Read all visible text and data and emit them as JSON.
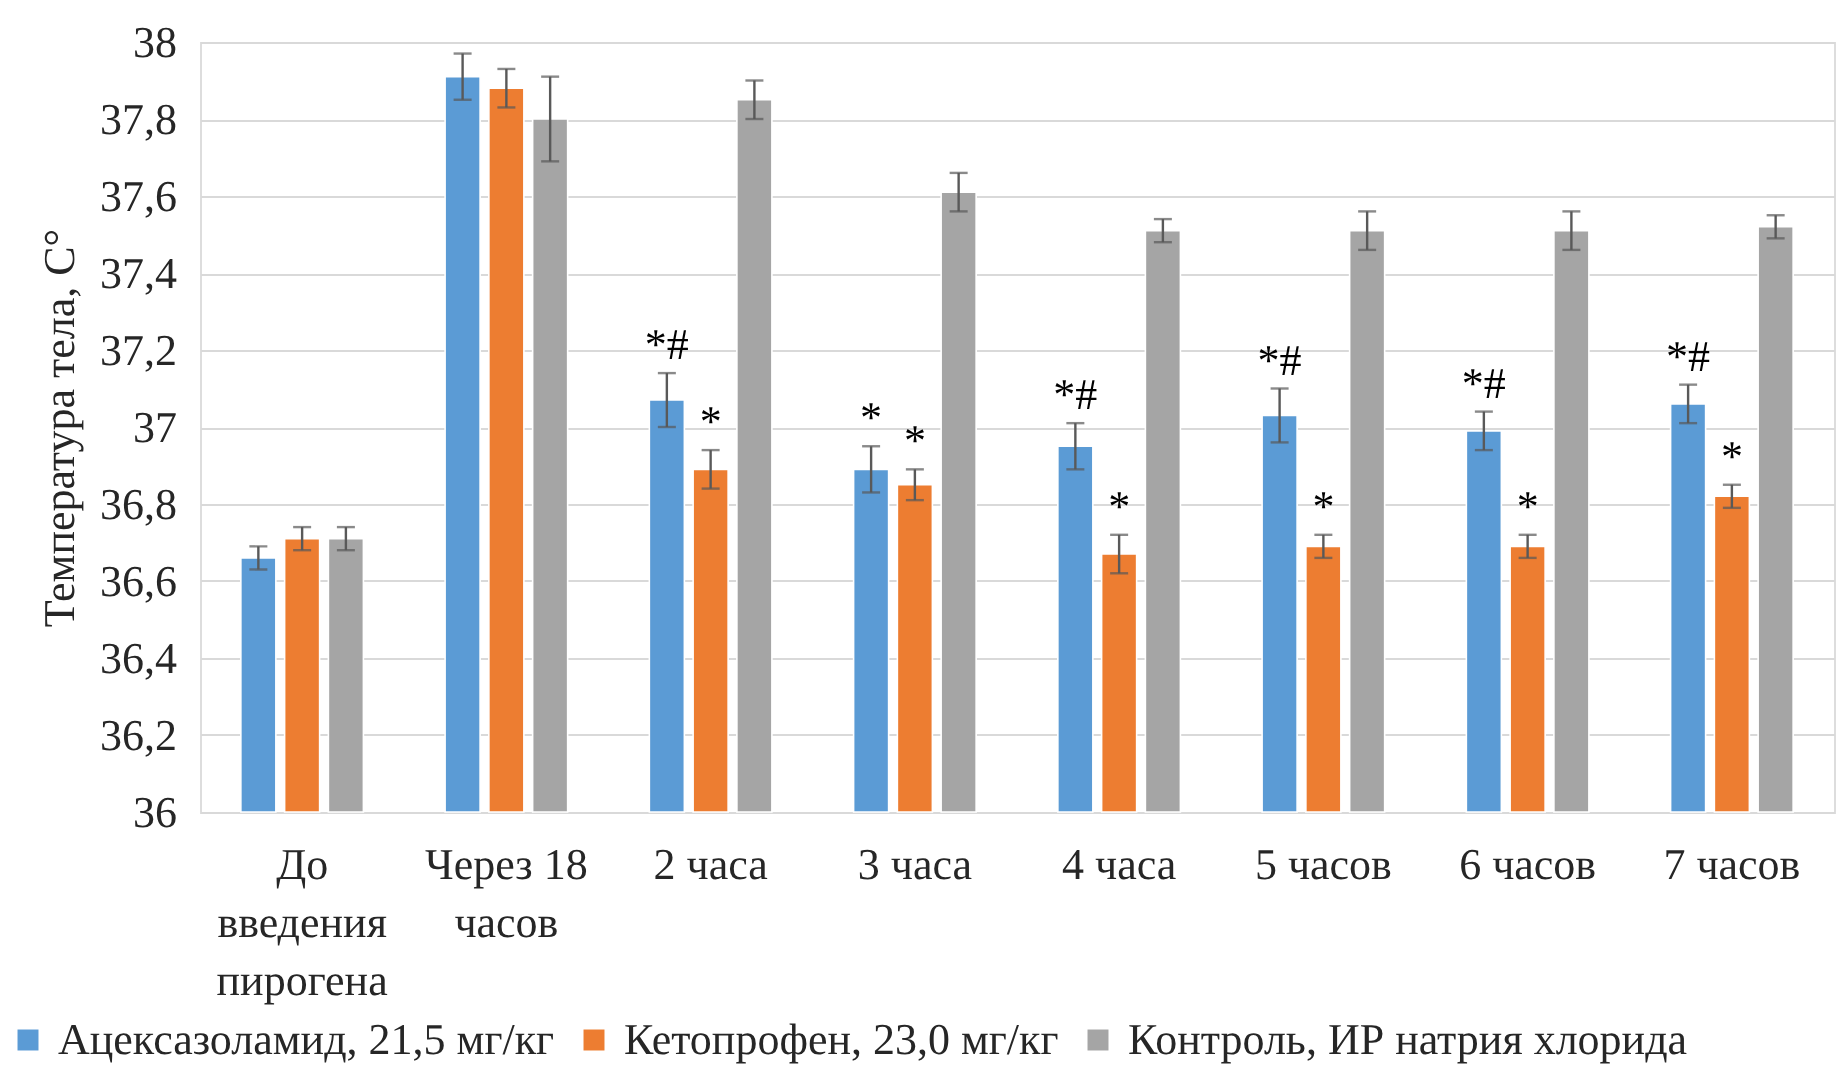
{
  "chart_data": {
    "type": "bar",
    "ylabel": "Температура тела, С°",
    "categories": [
      "До введения пирогена",
      "Через 18 часов",
      "2 часа",
      "3 часа",
      "4 часа",
      "5 часов",
      "6 часов",
      "7 часов"
    ],
    "series": [
      {
        "name": "Ацексазоламид, 21,5 мг/кг",
        "color": "#5b9bd5",
        "values": [
          36.66,
          37.91,
          37.07,
          36.89,
          36.95,
          37.03,
          36.99,
          37.06
        ],
        "errors": [
          0.03,
          0.06,
          0.07,
          0.06,
          0.06,
          0.07,
          0.05,
          0.05
        ],
        "value_labels": [
          null,
          null,
          "*#",
          "*",
          "*#",
          "*#",
          "*#",
          "*#"
        ]
      },
      {
        "name": "Кетопрофен, 23,0 мг/кг",
        "color": "#ed7d31",
        "values": [
          36.71,
          37.88,
          36.89,
          36.85,
          36.67,
          36.69,
          36.69,
          36.82
        ],
        "errors": [
          0.03,
          0.05,
          0.05,
          0.04,
          0.05,
          0.03,
          0.03,
          0.03
        ],
        "value_labels": [
          null,
          null,
          "*",
          "*",
          "*",
          "*",
          "*",
          "*"
        ]
      },
      {
        "name": "Контроль, ИР натрия хлорида",
        "color": "#a5a5a5",
        "values": [
          36.71,
          37.8,
          37.85,
          37.61,
          37.51,
          37.51,
          37.51,
          37.52
        ],
        "errors": [
          0.03,
          0.11,
          0.05,
          0.05,
          0.03,
          0.05,
          0.05,
          0.03
        ]
      }
    ],
    "ylim": [
      36,
      38
    ],
    "yticks": [
      36,
      {
        "value": 36.2,
        "label": "36,2"
      },
      {
        "value": 36.4,
        "label": "36,4"
      },
      {
        "value": 36.6,
        "label": "36,6"
      },
      {
        "value": 36.8,
        "label": "36,8"
      },
      37,
      {
        "value": 37.2,
        "label": "37,2"
      },
      {
        "value": 37.4,
        "label": "37,4"
      },
      {
        "value": 37.6,
        "label": "37,6"
      },
      {
        "value": 37.8,
        "label": "37,8"
      },
      38
    ],
    "grid": "y",
    "legend": "bottom"
  }
}
